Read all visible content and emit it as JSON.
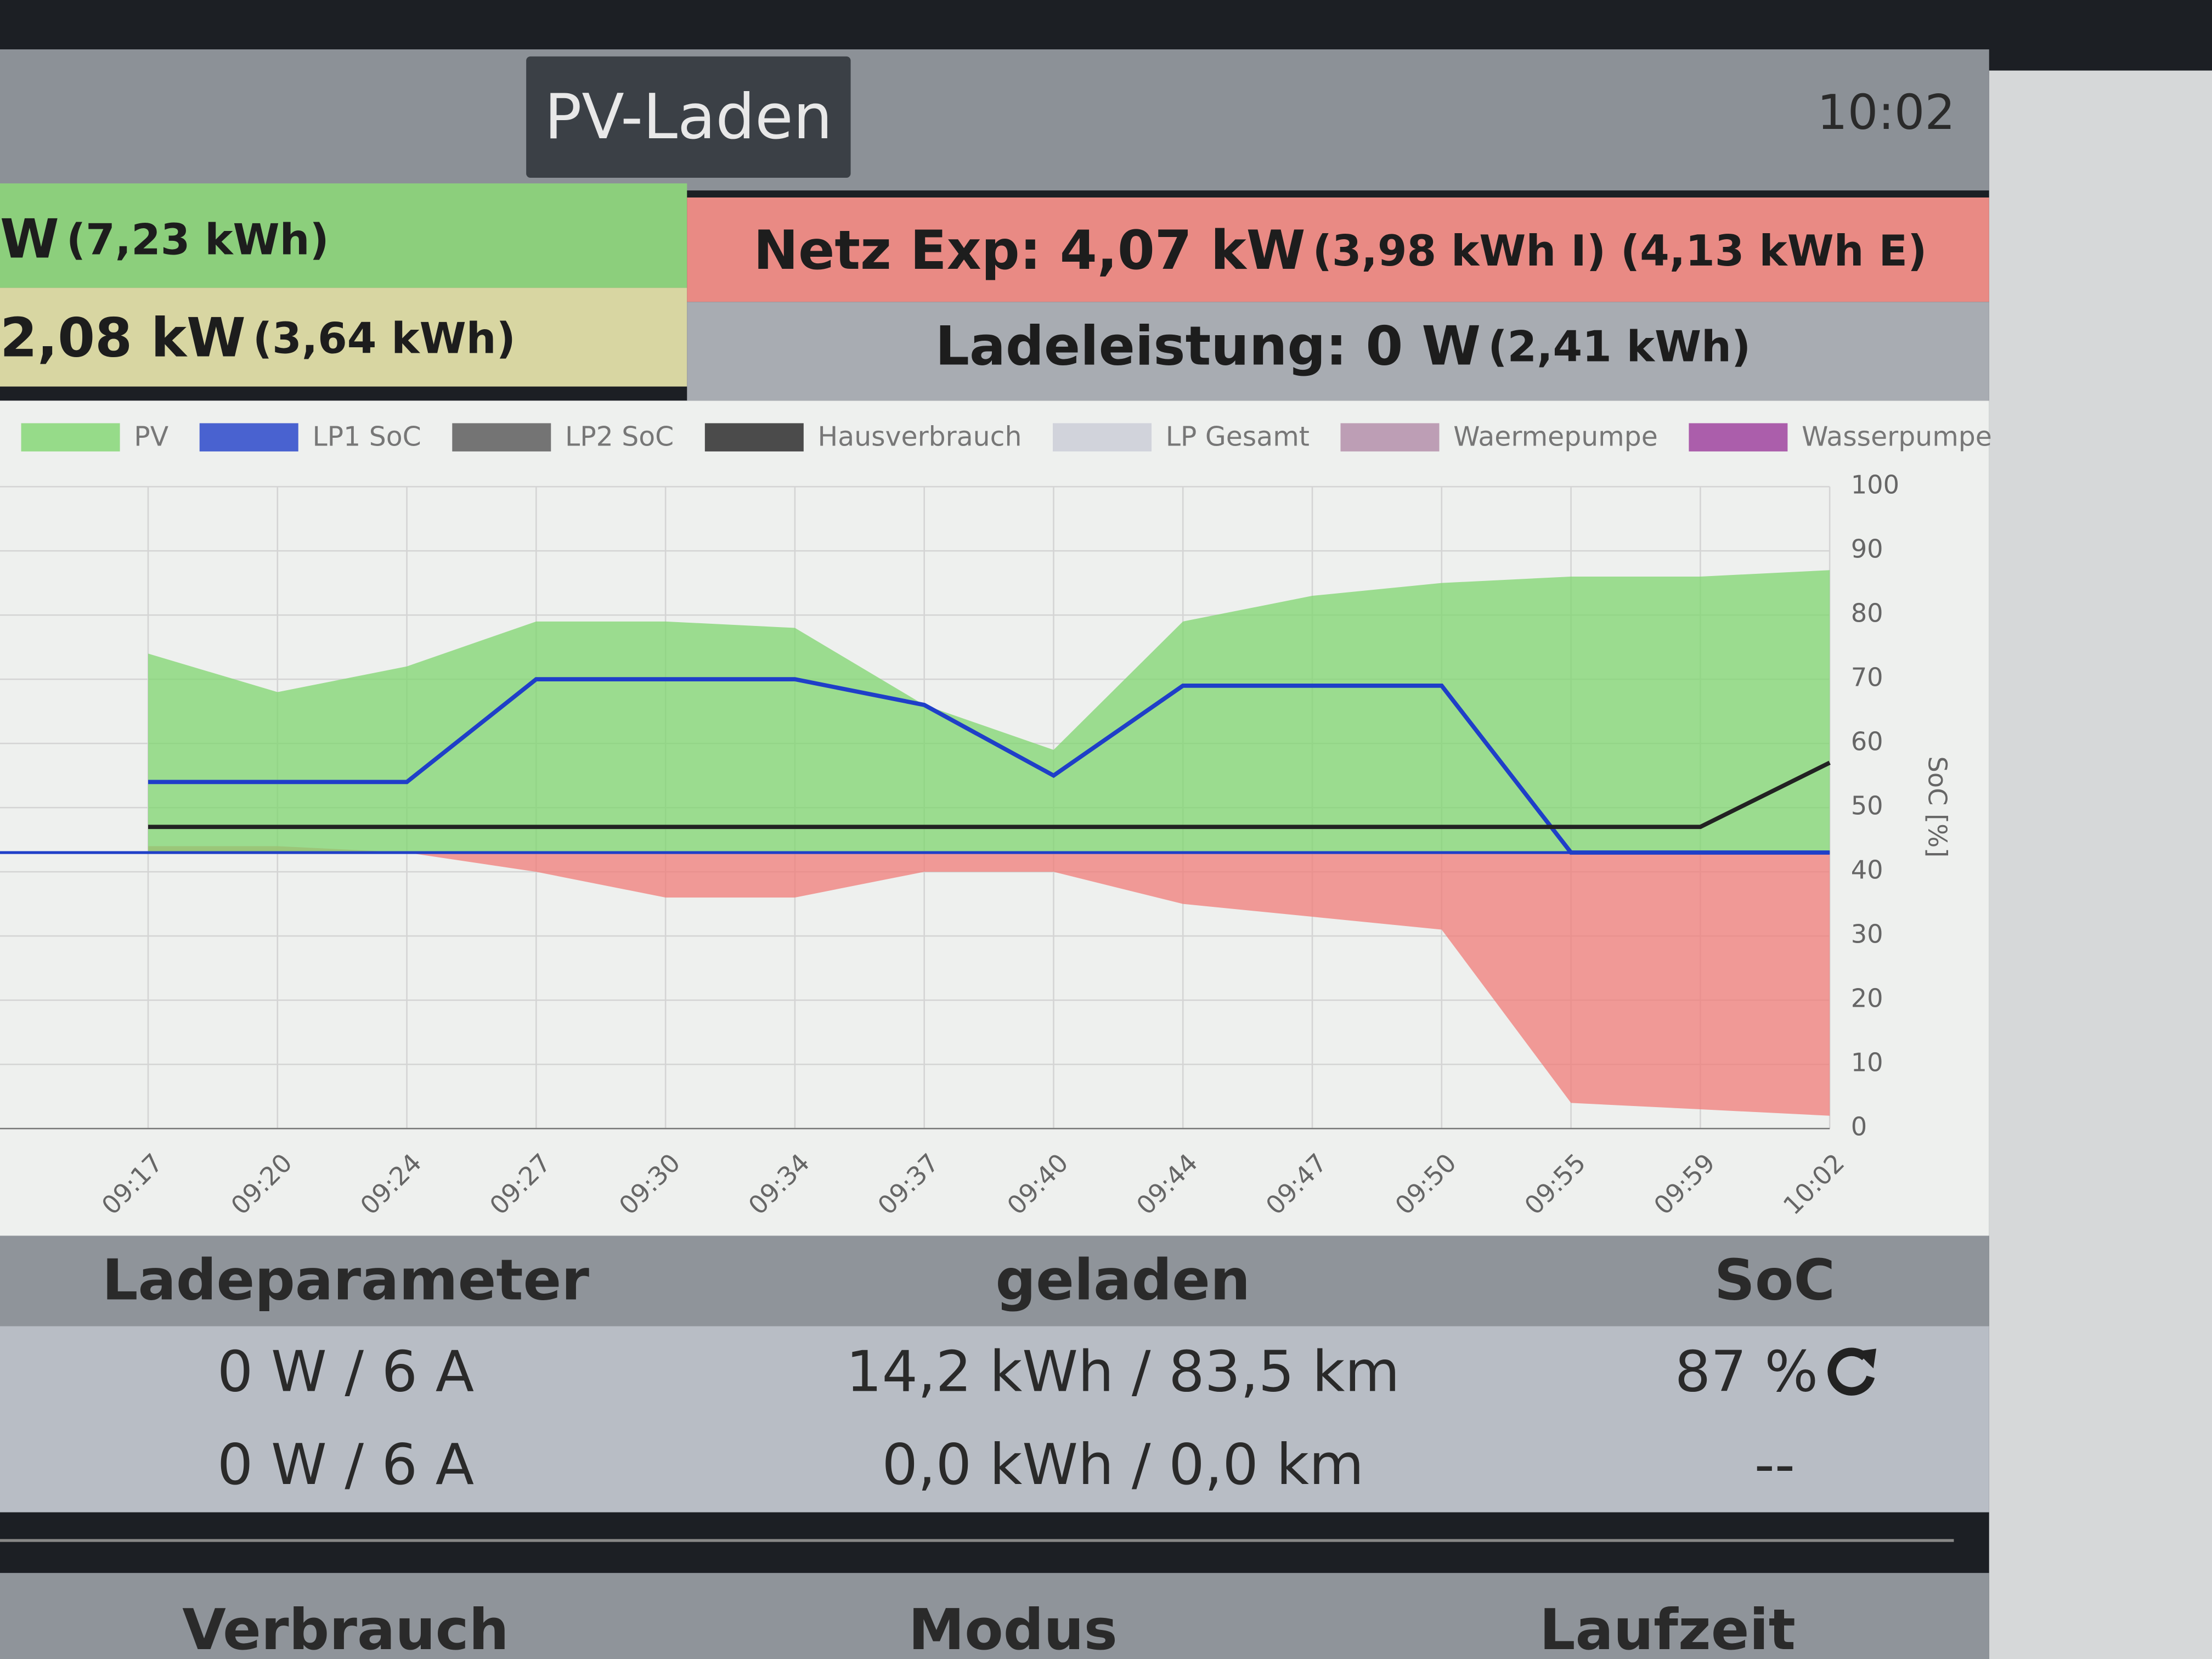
{
  "header": {
    "mode": "PV-Laden",
    "time": "10:02"
  },
  "status": {
    "pv": {
      "main": "W",
      "sub": "(7,23 kWh)"
    },
    "house": {
      "main": "2,08 kW",
      "sub": "(3,64 kWh)"
    },
    "grid": {
      "main": "Netz Exp: 4,07 kW",
      "sub": "(3,98 kWh I) (4,13 kWh E)"
    },
    "charge": {
      "main": "Ladeleistung: 0 W",
      "sub": "(2,41 kWh)"
    }
  },
  "chart": {
    "type": "area-line",
    "categories": [
      "09:17",
      "09:20",
      "09:24",
      "09:27",
      "09:30",
      "09:34",
      "09:37",
      "09:40",
      "09:44",
      "09:47",
      "09:50",
      "09:55",
      "09:59",
      "10:02"
    ],
    "baseline": 43,
    "series": [
      {
        "name": "PV",
        "color": "#7fd66f",
        "style": "area",
        "values": [
          74,
          68,
          72,
          79,
          79,
          78,
          66,
          59,
          79,
          83,
          85,
          86,
          86,
          87
        ]
      },
      {
        "name": "LP1 SoC",
        "color": "#1f3fc8",
        "style": "line",
        "values": [
          54,
          54,
          54,
          70,
          70,
          70,
          66,
          55,
          69,
          69,
          69,
          43,
          43,
          43
        ]
      },
      {
        "name": "LP2 SoC",
        "color": "#555555",
        "style": "line",
        "values": [
          null,
          null,
          null,
          null,
          null,
          null,
          null,
          null,
          null,
          null,
          null,
          null,
          null,
          null
        ]
      },
      {
        "name": "Hausverbrauch",
        "color": "#222222",
        "style": "line",
        "values": [
          47,
          47,
          47,
          47,
          47,
          47,
          47,
          47,
          47,
          47,
          47,
          47,
          47,
          57
        ]
      },
      {
        "name": "LP Gesamt",
        "color": "#c9ccd6",
        "style": "line",
        "values": [
          null,
          null,
          null,
          null,
          null,
          null,
          null,
          null,
          null,
          null,
          null,
          null,
          null,
          null
        ]
      },
      {
        "name": "Waermepumpe",
        "color": "#b08aa6",
        "style": "line",
        "values": [
          null,
          null,
          null,
          null,
          null,
          null,
          null,
          null,
          null,
          null,
          null,
          null,
          null,
          null
        ]
      },
      {
        "name": "Wasserpumpe",
        "color": "#9a3a9a",
        "style": "line",
        "values": [
          null,
          null,
          null,
          null,
          null,
          null,
          null,
          null,
          null,
          null,
          null,
          null,
          null,
          null
        ]
      }
    ],
    "grid_area": {
      "color": "#f07c78",
      "values": [
        44,
        44,
        43,
        40,
        36,
        36,
        40,
        40,
        35,
        33,
        31,
        4,
        3,
        2
      ]
    },
    "y2lim": [
      0,
      100
    ],
    "y2ticks": [
      0,
      10,
      20,
      30,
      40,
      50,
      60,
      70,
      80,
      90,
      100
    ],
    "y2label": "SoC [%]",
    "grid": true
  },
  "table": {
    "headers": [
      "Ladeparameter",
      "geladen",
      "SoC"
    ],
    "rows": [
      [
        "0 W / 6 A",
        "14,2 kWh / 83,5 km",
        "87 %"
      ],
      [
        "0 W / 6 A",
        "0,0 kWh / 0,0 km",
        "--"
      ]
    ]
  },
  "footer": {
    "headers": [
      "Verbrauch",
      "Modus",
      "Laufzeit"
    ]
  }
}
